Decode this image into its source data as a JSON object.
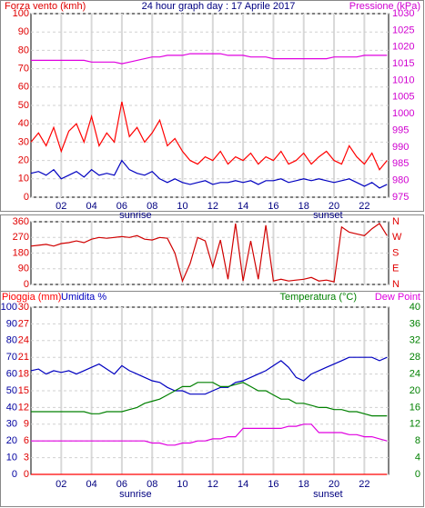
{
  "chart_data": [
    {
      "type": "line",
      "title": "24 hour graph day : 17 Aprile 2017",
      "y_label": "Forza vento (kmh)",
      "y2_label": "Pressione (kPa)",
      "y_color": "#e00000",
      "y2_color": "#d000d0",
      "x": [
        0,
        0.5,
        1,
        1.5,
        2,
        2.5,
        3,
        3.5,
        4,
        4.5,
        5,
        5.5,
        6,
        6.5,
        7,
        7.5,
        8,
        8.5,
        9,
        9.5,
        10,
        10.5,
        11,
        11.5,
        12,
        12.5,
        13,
        13.5,
        14,
        14.5,
        15,
        15.5,
        16,
        16.5,
        17,
        17.5,
        18,
        18.5,
        19,
        19.5,
        20,
        20.5,
        21,
        21.5,
        22,
        22.5,
        23,
        23.5
      ],
      "xlim": [
        0,
        23.6
      ],
      "xticks": [
        {
          "value": 2,
          "label": "02"
        },
        {
          "value": 4,
          "label": "04"
        },
        {
          "value": 6,
          "label": "06"
        },
        {
          "value": 8,
          "label": "08"
        },
        {
          "value": 10,
          "label": "10"
        },
        {
          "value": 12,
          "label": "12"
        },
        {
          "value": 14,
          "label": "14"
        },
        {
          "value": 16,
          "label": "16"
        },
        {
          "value": 18,
          "label": "18"
        },
        {
          "value": 20,
          "label": "20"
        },
        {
          "value": 22,
          "label": "22"
        }
      ],
      "ylim": [
        0,
        100
      ],
      "yticks": [
        0,
        10,
        20,
        30,
        40,
        50,
        60,
        70,
        80,
        90,
        100
      ],
      "y2lim": [
        975,
        1030
      ],
      "y2ticks": [
        975,
        980,
        985,
        990,
        995,
        1000,
        1005,
        1010,
        1015,
        1020,
        1025,
        1030
      ],
      "annotations": [
        {
          "text": "sunrise",
          "x": 6.9
        },
        {
          "text": "sunset",
          "x": 19.6
        }
      ],
      "series": [
        {
          "color": "#ff0000",
          "values": [
            30,
            35,
            28,
            38,
            25,
            36,
            40,
            30,
            44,
            28,
            35,
            30,
            52,
            33,
            38,
            30,
            35,
            42,
            28,
            32,
            25,
            20,
            18,
            22,
            20,
            25,
            18,
            22,
            20,
            24,
            18,
            22,
            20,
            25,
            18,
            20,
            24,
            18,
            22,
            25,
            20,
            18,
            28,
            22,
            18,
            24,
            15,
            20
          ]
        },
        {
          "color": "#0000c0",
          "values": [
            13,
            14,
            12,
            15,
            10,
            12,
            14,
            11,
            15,
            12,
            13,
            12,
            20,
            15,
            13,
            12,
            14,
            10,
            8,
            10,
            8,
            7,
            8,
            9,
            7,
            8,
            8,
            9,
            8,
            9,
            7,
            9,
            9,
            10,
            8,
            9,
            10,
            9,
            10,
            9,
            8,
            9,
            10,
            8,
            6,
            8,
            5,
            7
          ]
        },
        {
          "color": "#e000e0",
          "axis": "y2",
          "values": [
            1016,
            1016,
            1016,
            1016,
            1016,
            1016,
            1016,
            1016,
            1015.5,
            1015.5,
            1015.5,
            1015.5,
            1015,
            1015.5,
            1016,
            1016.5,
            1017,
            1017,
            1017.5,
            1017.5,
            1017.5,
            1018,
            1018,
            1018,
            1018,
            1018,
            1017.5,
            1017.5,
            1017.5,
            1017,
            1017,
            1017,
            1016.5,
            1016.5,
            1016.5,
            1016.5,
            1016.5,
            1016.5,
            1016.5,
            1016.5,
            1017,
            1017,
            1017,
            1017,
            1017.5,
            1017.5,
            1017.5,
            1017.5
          ]
        }
      ]
    },
    {
      "type": "line",
      "y_color": "#e00000",
      "y2_color": "#e00000",
      "x": [
        0,
        0.5,
        1,
        1.5,
        2,
        2.5,
        3,
        3.5,
        4,
        4.5,
        5,
        5.5,
        6,
        6.5,
        7,
        7.5,
        8,
        8.5,
        9,
        9.5,
        10,
        10.5,
        11,
        11.5,
        12,
        12.5,
        13,
        13.5,
        14,
        14.5,
        15,
        15.5,
        16,
        16.5,
        17,
        17.5,
        18,
        18.5,
        19,
        19.5,
        20,
        20.5,
        21,
        21.5,
        22,
        22.5,
        23,
        23.5
      ],
      "xlim": [
        0,
        23.6
      ],
      "xticks": [
        2,
        4,
        6,
        8,
        10,
        12,
        14,
        16,
        18,
        20,
        22
      ],
      "ylim": [
        0,
        360
      ],
      "yticks": [
        0,
        90,
        180,
        270,
        360
      ],
      "y2lim": [
        0,
        360
      ],
      "y2ticks": [
        {
          "value": 0,
          "label": "N"
        },
        {
          "value": 90,
          "label": "E"
        },
        {
          "value": 180,
          "label": "S"
        },
        {
          "value": 270,
          "label": "W"
        },
        {
          "value": 360,
          "label": "N"
        }
      ],
      "series": [
        {
          "color": "#d00000",
          "values": [
            220,
            225,
            230,
            220,
            235,
            240,
            250,
            240,
            260,
            270,
            265,
            270,
            275,
            270,
            280,
            260,
            255,
            270,
            265,
            180,
            20,
            120,
            270,
            250,
            100,
            255,
            30,
            350,
            20,
            250,
            30,
            340,
            20,
            30,
            20,
            25,
            30,
            40,
            20,
            25,
            15,
            330,
            300,
            290,
            280,
            320,
            350,
            280
          ]
        }
      ]
    },
    {
      "type": "line",
      "y_color": "#0000a0",
      "y2_color": "#008000",
      "y3_color": "#e00000",
      "x": [
        0,
        0.5,
        1,
        1.5,
        2,
        2.5,
        3,
        3.5,
        4,
        4.5,
        5,
        5.5,
        6,
        6.5,
        7,
        7.5,
        8,
        8.5,
        9,
        9.5,
        10,
        10.5,
        11,
        11.5,
        12,
        12.5,
        13,
        13.5,
        14,
        14.5,
        15,
        15.5,
        16,
        16.5,
        17,
        17.5,
        18,
        18.5,
        19,
        19.5,
        20,
        20.5,
        21,
        21.5,
        22,
        22.5,
        23,
        23.5
      ],
      "xlim": [
        0,
        23.6
      ],
      "xticks": [
        {
          "value": 2,
          "label": "02"
        },
        {
          "value": 4,
          "label": "04"
        },
        {
          "value": 6,
          "label": "06"
        },
        {
          "value": 8,
          "label": "08"
        },
        {
          "value": 10,
          "label": "10"
        },
        {
          "value": 12,
          "label": "12"
        },
        {
          "value": 14,
          "label": "14"
        },
        {
          "value": 16,
          "label": "16"
        },
        {
          "value": 18,
          "label": "18"
        },
        {
          "value": 20,
          "label": "20"
        },
        {
          "value": 22,
          "label": "22"
        }
      ],
      "ylim": [
        0,
        100
      ],
      "yticks": [
        0,
        10,
        20,
        30,
        40,
        50,
        60,
        70,
        80,
        90,
        100
      ],
      "y3lim": [
        0,
        30
      ],
      "y3ticks": [
        0,
        3,
        6,
        9,
        12,
        15,
        18,
        21,
        24,
        27,
        30
      ],
      "y2lim": [
        0,
        40
      ],
      "y2ticks": [
        0,
        4,
        8,
        12,
        16,
        20,
        24,
        28,
        32,
        36,
        40
      ],
      "annotations": [
        {
          "text": "sunrise",
          "x": 6.9
        },
        {
          "text": "sunset",
          "x": 19.6
        }
      ],
      "series": [
        {
          "name": "Pioggia (mm)",
          "color": "#ff0000",
          "axis": "y3",
          "values": [
            0,
            0,
            0,
            0,
            0,
            0,
            0,
            0,
            0,
            0,
            0,
            0,
            0,
            0,
            0,
            0,
            0,
            0,
            0,
            0,
            0,
            0,
            0,
            0,
            0,
            0,
            0,
            0,
            0,
            0,
            0,
            0,
            0,
            0,
            0,
            0,
            0,
            0,
            0,
            0,
            0,
            0,
            0,
            0,
            0,
            0,
            0,
            0
          ]
        },
        {
          "name": "Umidita %",
          "color": "#0000c0",
          "values": [
            62,
            63,
            60,
            62,
            61,
            62,
            60,
            62,
            64,
            66,
            63,
            60,
            65,
            62,
            60,
            58,
            56,
            55,
            52,
            50,
            50,
            48,
            48,
            48,
            50,
            52,
            52,
            55,
            56,
            58,
            60,
            62,
            65,
            68,
            64,
            58,
            56,
            60,
            62,
            64,
            66,
            68,
            70,
            70,
            70,
            70,
            68,
            70
          ]
        },
        {
          "name": "Temperatura (°C)",
          "color": "#008000",
          "axis": "y2",
          "values": [
            15,
            15,
            15,
            15,
            15,
            15,
            15,
            15,
            14.5,
            14.5,
            15,
            15,
            15,
            15.5,
            16,
            17,
            17.5,
            18,
            19,
            20,
            21,
            21,
            22,
            22,
            22,
            21,
            21,
            21.5,
            22,
            21,
            20,
            20,
            19,
            18,
            18,
            17,
            17,
            16.5,
            16,
            16,
            15.5,
            15.5,
            15,
            15,
            14.5,
            14,
            14,
            14
          ]
        },
        {
          "name": "Dew Point",
          "color": "#e000e0",
          "axis": "y2",
          "values": [
            8,
            8,
            8,
            8,
            8,
            8,
            8,
            8,
            8,
            8,
            8,
            8,
            8,
            8,
            8,
            8,
            7.5,
            7.5,
            7,
            7,
            7.5,
            7.5,
            8,
            8,
            8.5,
            8.5,
            9,
            9,
            11,
            11,
            11,
            11,
            11,
            11,
            11.5,
            11.5,
            12,
            12,
            10,
            10,
            10,
            10,
            9.5,
            9.5,
            9,
            9,
            8.5,
            8
          ]
        }
      ]
    }
  ]
}
